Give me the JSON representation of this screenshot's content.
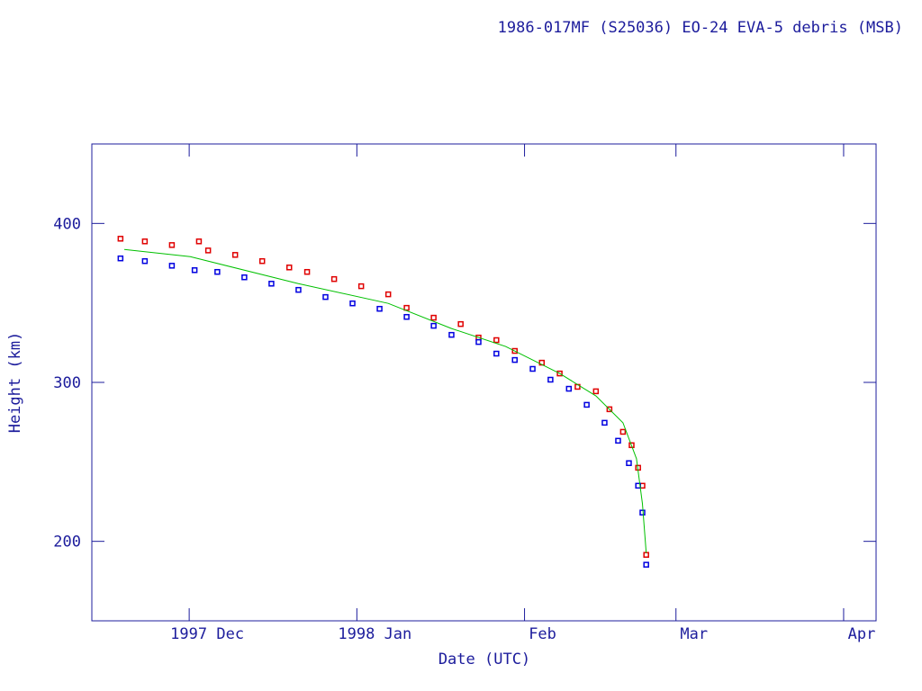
{
  "chart_data": {
    "type": "scatter",
    "title": "1986-017MF (S25036) EO-24 EVA-5 debris (MSB)",
    "x_label": "Date (UTC)",
    "y_label": "Height (km)",
    "xlim": [
      -18,
      127
    ],
    "ylim": [
      150,
      450
    ],
    "xticks": [
      {
        "value": 0,
        "label": "1997 Dec"
      },
      {
        "value": 31,
        "label": "1998 Jan"
      },
      {
        "value": 62,
        "label": "Feb"
      },
      {
        "value": 90,
        "label": "Mar"
      },
      {
        "value": 121,
        "label": "Apr"
      }
    ],
    "yticks": [
      200,
      300,
      400
    ],
    "series": [
      {
        "color": "#e00000",
        "style": "points",
        "x": [
          -12.7,
          -8.2,
          -3.2,
          1.8,
          3.5,
          8.5,
          13.5,
          18.5,
          21.8,
          26.8,
          31.8,
          36.8,
          40.2,
          45.2,
          50.2,
          53.5,
          56.8,
          60.2,
          65.2,
          68.5,
          71.8,
          75.2,
          77.7,
          80.2,
          81.8,
          83,
          83.8,
          84.5
        ],
        "values": [
          390.4,
          388.7,
          386.4,
          388.7,
          383,
          380.2,
          376.3,
          372.3,
          369.5,
          365,
          360.5,
          355.4,
          346.9,
          340.7,
          336.7,
          328.2,
          326.6,
          319.8,
          312.4,
          305.6,
          297.2,
          294.4,
          283.1,
          268.9,
          260.5,
          246.3,
          235,
          191.5
        ]
      },
      {
        "color": "#0000e0",
        "style": "points",
        "x": [
          -12.7,
          -8.2,
          -3.2,
          1,
          5.2,
          10.2,
          15.2,
          20.2,
          25.2,
          30.2,
          35.2,
          40.2,
          45.2,
          48.5,
          53.5,
          56.8,
          60.2,
          63.5,
          66.8,
          70.2,
          73.5,
          76.8,
          79.3,
          81.3,
          83,
          83.8,
          84.5
        ],
        "values": [
          378,
          376.3,
          373.4,
          370.6,
          369.5,
          366.1,
          362.1,
          358.2,
          353.7,
          349.7,
          346.3,
          341.2,
          335.6,
          329.9,
          325.4,
          318.1,
          314.1,
          308.5,
          301.7,
          296,
          285.9,
          274.6,
          263.3,
          249.2,
          235,
          218.1,
          185.3
        ]
      },
      {
        "color": "#00c000",
        "style": "line",
        "x": [
          -12,
          0.2,
          20.2,
          36.8,
          48.5,
          58.5,
          68.5,
          75.2,
          80.2,
          82.7,
          83.8,
          84.5
        ],
        "values": [
          383.6,
          379.1,
          362.1,
          349.7,
          333.9,
          322.6,
          305.6,
          291.5,
          274.6,
          252,
          223.7,
          192.7
        ]
      }
    ]
  }
}
